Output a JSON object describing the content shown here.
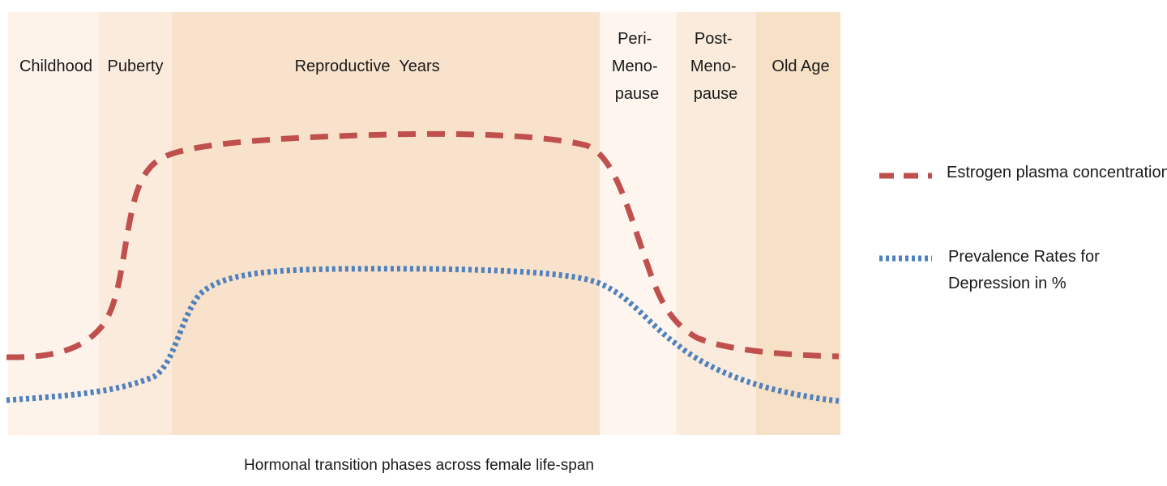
{
  "phases": [
    {
      "lines": [
        "Childhood"
      ],
      "color": "#fdf3ea"
    },
    {
      "lines": [
        "Puberty"
      ],
      "color": "#fbebdc"
    },
    {
      "lines": [
        "Reproductive  Years"
      ],
      "color": "#f8e2cc"
    },
    {
      "lines": [
        "Peri-",
        "Meno-",
        "pause"
      ],
      "color": "#fdf5ee"
    },
    {
      "lines": [
        "Post-",
        "Meno-",
        "pause"
      ],
      "color": "#fbebdc"
    },
    {
      "lines": [
        "Old Age"
      ],
      "color": "#f6e0c6"
    }
  ],
  "caption": "Hormonal transition phases across female life-span",
  "legend": [
    {
      "lines": [
        "Estrogen plasma concentration"
      ],
      "style": "dashed",
      "color": "#c0504d"
    },
    {
      "lines": [
        "Prevalence Rates for",
        "Depression in %"
      ],
      "style": "dotted",
      "color": "#4f81bd"
    }
  ]
}
